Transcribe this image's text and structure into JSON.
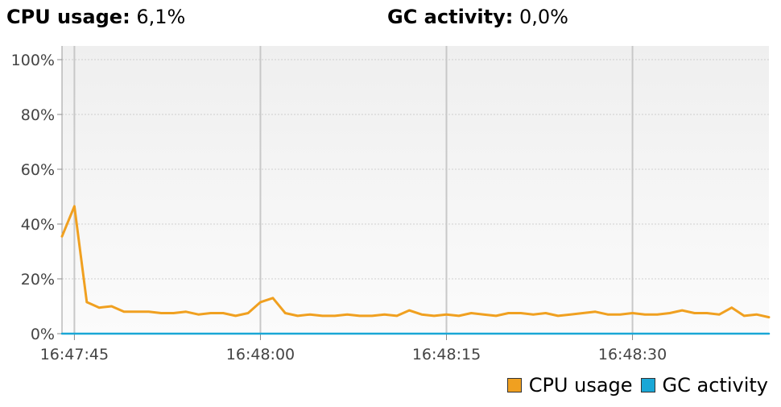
{
  "header": {
    "cpu_label": "CPU usage:",
    "cpu_value": "6,1%",
    "gc_label": "GC activity:",
    "gc_value": "0,0%"
  },
  "colors": {
    "cpu": "#f0a020",
    "gc": "#1aa7d6",
    "plot_bg_top": "#efefef",
    "plot_bg_bottom": "#fbfbfb",
    "grid": "#c8c8c8"
  },
  "legend": [
    {
      "label": "CPU usage",
      "color": "#f0a020"
    },
    {
      "label": "GC activity",
      "color": "#1aa7d6"
    }
  ],
  "chart_data": {
    "type": "line",
    "x_unit": "seconds",
    "x_start_label": "16:47:45",
    "x_ticks": [
      {
        "x": 0,
        "label": "16:47:45"
      },
      {
        "x": 15,
        "label": "16:48:00"
      },
      {
        "x": 30,
        "label": "16:48:15"
      },
      {
        "x": 45,
        "label": "16:48:30"
      }
    ],
    "xlim": [
      -1,
      56
    ],
    "ylim": [
      0,
      105
    ],
    "y_ticks": [
      {
        "y": 0,
        "label": "0%"
      },
      {
        "y": 20,
        "label": "20%"
      },
      {
        "y": 40,
        "label": "40%"
      },
      {
        "y": 60,
        "label": "60%"
      },
      {
        "y": 80,
        "label": "80%"
      },
      {
        "y": 100,
        "label": "100%"
      }
    ],
    "grid": true,
    "legend_position": "bottom-right",
    "series": [
      {
        "name": "CPU usage",
        "x": [
          -1,
          0,
          1,
          2,
          3,
          4,
          5,
          6,
          7,
          8,
          9,
          10,
          11,
          12,
          13,
          14,
          15,
          16,
          17,
          18,
          19,
          20,
          21,
          22,
          23,
          24,
          25,
          26,
          27,
          28,
          29,
          30,
          31,
          32,
          33,
          34,
          35,
          36,
          37,
          38,
          39,
          40,
          41,
          42,
          43,
          44,
          45,
          46,
          47,
          48,
          49,
          50,
          51,
          52,
          53,
          54,
          55,
          56
        ],
        "values": [
          35.5,
          46.5,
          11.5,
          9.5,
          10,
          8,
          8,
          8,
          7.5,
          7.5,
          8,
          7,
          7.5,
          7.5,
          6.5,
          7.5,
          11.5,
          13,
          7.5,
          6.5,
          7,
          6.5,
          6.5,
          7,
          6.5,
          6.5,
          7,
          6.5,
          8.5,
          7,
          6.5,
          7,
          6.5,
          7.5,
          7,
          6.5,
          7.5,
          7.5,
          7,
          7.5,
          6.5,
          7,
          7.5,
          8,
          7,
          7,
          7.5,
          7,
          7,
          7.5,
          8.5,
          7.5,
          7.5,
          7,
          9.5,
          6.5,
          7,
          6
        ]
      },
      {
        "name": "GC activity",
        "x": [
          -1,
          56
        ],
        "values": [
          0,
          0
        ]
      }
    ]
  }
}
